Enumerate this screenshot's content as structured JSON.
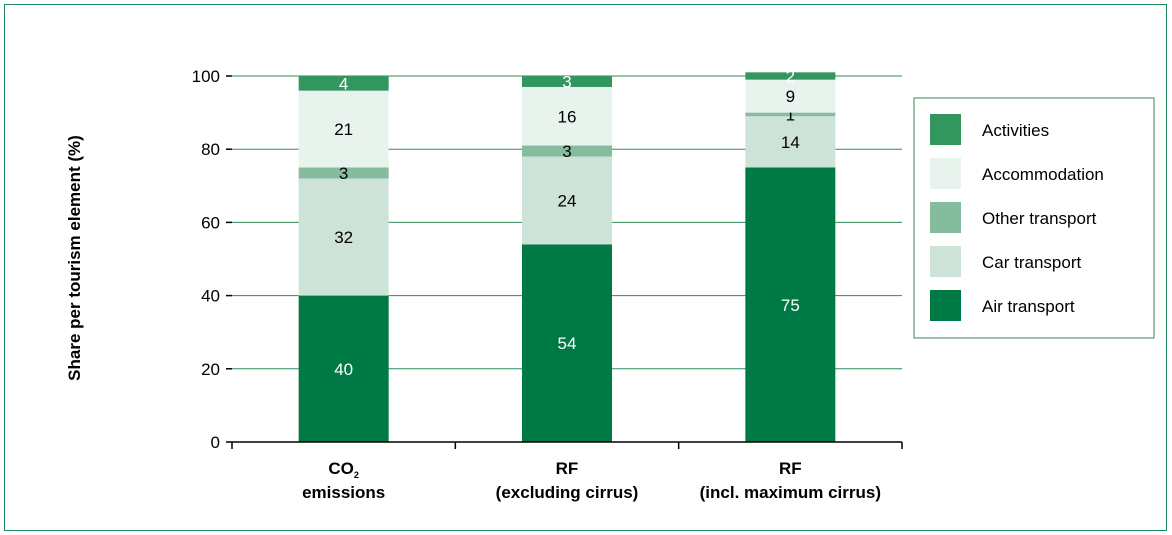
{
  "chart_data": {
    "type": "bar",
    "stacked": true,
    "ylabel": "Share per tourism element (%)",
    "ylim": [
      0,
      100
    ],
    "yticks": [
      0,
      20,
      40,
      60,
      80,
      100
    ],
    "grid": true,
    "legend_position": "right",
    "categories": [
      {
        "main": "CO",
        "sub": "2",
        "line2": "emissions"
      },
      {
        "main": "RF",
        "sub": "",
        "line2": "(excluding cirrus)"
      },
      {
        "main": "RF",
        "sub": "",
        "line2": "(incl. maximum cirrus)"
      }
    ],
    "series": [
      {
        "name": "Air transport",
        "color": "#007a45",
        "label_color": "#ffffff",
        "values": [
          40,
          54,
          75
        ]
      },
      {
        "name": "Car transport",
        "color": "#cde3d8",
        "label_color": "#000000",
        "values": [
          32,
          24,
          14
        ]
      },
      {
        "name": "Other transport",
        "color": "#86bc9e",
        "label_color": "#000000",
        "values": [
          3,
          3,
          1
        ]
      },
      {
        "name": "Accommodation",
        "color": "#e9f3ee",
        "label_color": "#000000",
        "values": [
          21,
          16,
          9
        ]
      },
      {
        "name": "Activities",
        "color": "#33965f",
        "label_color": "#ffffff",
        "values": [
          4,
          3,
          2
        ]
      }
    ],
    "legend_order": [
      "Activities",
      "Accommodation",
      "Other transport",
      "Car transport",
      "Air transport"
    ]
  }
}
